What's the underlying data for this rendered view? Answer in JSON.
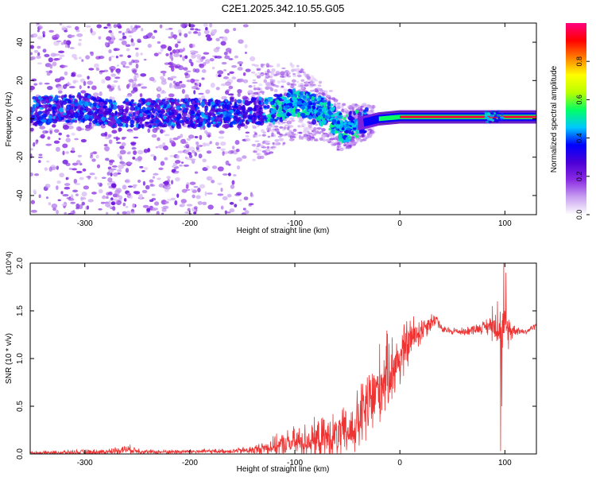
{
  "figure_title": "C2E1.2025.342.10.55.G05",
  "chart_data": [
    {
      "type": "heatmap",
      "title": "C2E1.2025.342.10.55.G05",
      "xlabel": "Height of straight line (km)",
      "ylabel": "Frequency (Hz)",
      "xlim": [
        -352,
        130
      ],
      "ylim": [
        -50,
        50
      ],
      "x_ticks": [
        -300,
        -200,
        -100,
        0,
        100
      ],
      "y_ticks": [
        -40,
        -20,
        0,
        20,
        40
      ],
      "x_tick_labels": [
        "-300",
        "-200",
        "-100",
        "0",
        "100"
      ],
      "y_tick_labels": [
        "-40",
        "-20",
        "0",
        "20",
        "40"
      ],
      "colorbar": {
        "label": "Normalized spectral amplitude",
        "range": [
          0,
          1
        ],
        "ticks": [
          0.0,
          0.2,
          0.4,
          0.6,
          0.8
        ],
        "tick_labels": [
          "0.0",
          "0.2",
          "0.4",
          "0.6",
          "0.8"
        ],
        "colormap": [
          "#ffffff",
          "#c8a0f0",
          "#8a2be2",
          "#4b00d6",
          "#0000ff",
          "#00c8ff",
          "#00ff66",
          "#b8ff00",
          "#ffff00",
          "#ff8000",
          "#ff0000",
          "#ff0080"
        ]
      },
      "ridge": [
        {
          "x": -350,
          "f": 4
        },
        {
          "x": -300,
          "f": 6
        },
        {
          "x": -280,
          "f": 3
        },
        {
          "x": -185,
          "f": 3
        },
        {
          "x": -150,
          "f": 3
        },
        {
          "x": -120,
          "f": 5
        },
        {
          "x": -100,
          "f": 9
        },
        {
          "x": -85,
          "f": 6
        },
        {
          "x": -70,
          "f": 3
        },
        {
          "x": -55,
          "f": -5
        },
        {
          "x": -45,
          "f": -3
        },
        {
          "x": -35,
          "f": -2
        },
        {
          "x": -20,
          "f": 0
        },
        {
          "x": 0,
          "f": 1
        },
        {
          "x": 130,
          "f": 1
        }
      ],
      "grid": false
    },
    {
      "type": "line",
      "xlabel": "Height of straight line (km)",
      "ylabel": "SNR (10 * v/v)",
      "y_scale_label": "(x10^4)",
      "xlim": [
        -352,
        130
      ],
      "ylim": [
        0,
        2.0
      ],
      "x_ticks": [
        -300,
        -200,
        -100,
        0,
        100
      ],
      "y_ticks": [
        0.0,
        0.5,
        1.0,
        1.5,
        2.0
      ],
      "x_tick_labels": [
        "-300",
        "-200",
        "-100",
        "0",
        "100"
      ],
      "y_tick_labels": [
        "0.0",
        "0.5",
        "1.0",
        "1.5",
        "2.0"
      ],
      "series": [
        {
          "color": "#ee3333",
          "envelope": [
            {
              "x": -352,
              "base": 0.01,
              "amp": 0.02
            },
            {
              "x": -280,
              "base": 0.02,
              "amp": 0.04
            },
            {
              "x": -260,
              "base": 0.05,
              "amp": 0.06
            },
            {
              "x": -240,
              "base": 0.02,
              "amp": 0.03
            },
            {
              "x": -160,
              "base": 0.03,
              "amp": 0.03
            },
            {
              "x": -140,
              "base": 0.04,
              "amp": 0.06
            },
            {
              "x": -120,
              "base": 0.08,
              "amp": 0.12
            },
            {
              "x": -100,
              "base": 0.12,
              "amp": 0.2
            },
            {
              "x": -80,
              "base": 0.15,
              "amp": 0.25
            },
            {
              "x": -60,
              "base": 0.18,
              "amp": 0.3
            },
            {
              "x": -45,
              "base": 0.25,
              "amp": 0.35
            },
            {
              "x": -30,
              "base": 0.5,
              "amp": 0.55
            },
            {
              "x": -15,
              "base": 0.8,
              "amp": 0.5
            },
            {
              "x": 0,
              "base": 1.0,
              "amp": 0.4
            },
            {
              "x": 10,
              "base": 1.2,
              "amp": 0.3
            },
            {
              "x": 25,
              "base": 1.35,
              "amp": 0.15
            },
            {
              "x": 35,
              "base": 1.42,
              "amp": 0.08
            },
            {
              "x": 40,
              "base": 1.3,
              "amp": 0.05
            },
            {
              "x": 60,
              "base": 1.28,
              "amp": 0.05
            },
            {
              "x": 80,
              "base": 1.33,
              "amp": 0.08
            },
            {
              "x": 90,
              "base": 1.35,
              "amp": 0.2
            },
            {
              "x": 100,
              "base": 1.3,
              "amp": 0.3
            },
            {
              "x": 110,
              "base": 1.3,
              "amp": 0.06
            },
            {
              "x": 120,
              "base": 1.28,
              "amp": 0.04
            },
            {
              "x": 130,
              "base": 1.35,
              "amp": 0.04
            }
          ],
          "spikes": [
            {
              "x": 96,
              "y": 0.03
            },
            {
              "x": 99,
              "y": 2.0
            },
            {
              "x": 97,
              "y": 0.5
            },
            {
              "x": 93,
              "y": 1.6
            },
            {
              "x": 101,
              "y": 1.9
            },
            {
              "x": 88,
              "y": 1.55
            }
          ]
        }
      ],
      "grid": false
    }
  ]
}
